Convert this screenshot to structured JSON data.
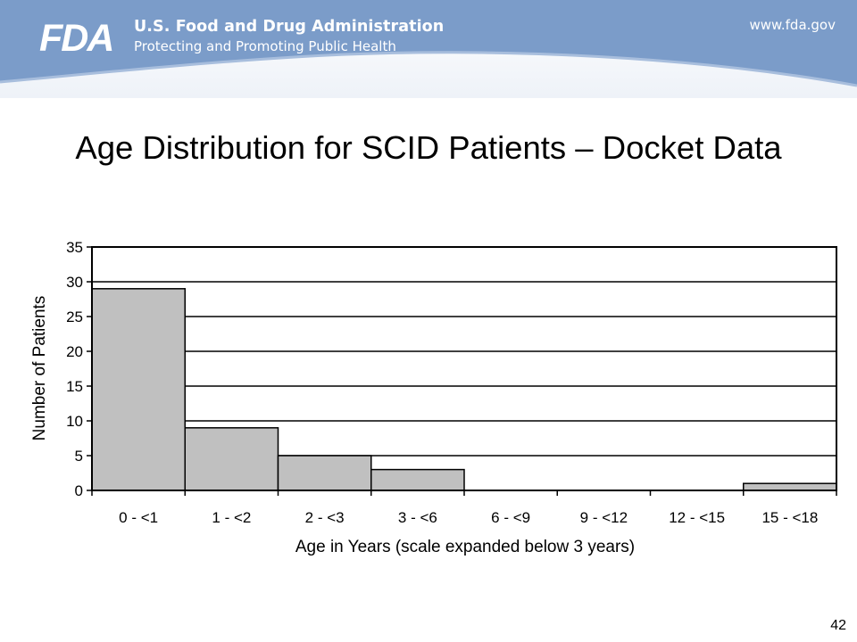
{
  "header": {
    "agency_name": "U.S. Food and Drug Administration",
    "tagline": "Protecting and Promoting Public Health",
    "website": "www.fda.gov",
    "logo_text": "FDA",
    "banner_color": "#7b9cc9"
  },
  "slide": {
    "title": "Age Distribution for SCID Patients – Docket Data",
    "page_number": "42"
  },
  "chart_data": {
    "type": "bar",
    "categories": [
      "0 - <1",
      "1 - <2",
      "2 - <3",
      "3 - <6",
      "6 - <9",
      "9 - <12",
      "12 - <15",
      "15 - <18"
    ],
    "values": [
      29,
      9,
      5,
      3,
      0,
      0,
      0,
      1
    ],
    "xlabel": "Age in Years (scale expanded below 3 years)",
    "ylabel": "Number of Patients",
    "ylim": [
      0,
      35
    ],
    "yticks": [
      0,
      5,
      10,
      15,
      20,
      25,
      30,
      35
    ],
    "grid": true,
    "bar_color": "#c0c0c0"
  }
}
